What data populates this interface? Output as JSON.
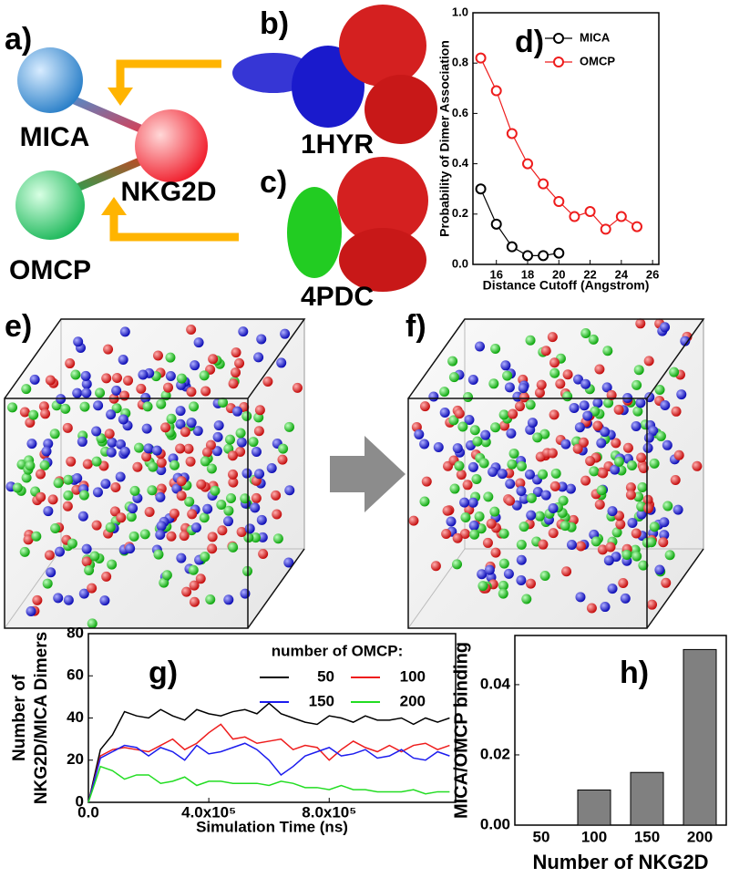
{
  "panel_labels": [
    "a)",
    "b)",
    "c)",
    "d)",
    "e)",
    "f)",
    "g)",
    "h)"
  ],
  "diagram": {
    "nodes": [
      "MICA",
      "NKG2D",
      "OMCP"
    ],
    "structures": [
      "1HYR",
      "4PDC"
    ]
  },
  "chart_data": [
    {
      "type": "line",
      "xlabel": "Distance Cutoff (Angstrom)",
      "ylabel": "Probability of Dimer Association",
      "xlim": [
        14.5,
        26.4
      ],
      "xticks": [
        16,
        18,
        20,
        22,
        24,
        26
      ],
      "ylim": [
        0,
        1.0
      ],
      "yticks": [
        {
          "value": 0,
          "label": "0.0"
        },
        0.2,
        0.4,
        0.6,
        0.8,
        {
          "value": 1.0,
          "label": "1.0"
        }
      ],
      "markers": true,
      "legend": "upper right",
      "series": [
        {
          "name": "MICA",
          "color": "#000000",
          "x": [
            15,
            16,
            17,
            18,
            19,
            20
          ],
          "values": [
            0.3,
            0.16,
            0.07,
            0.035,
            0.035,
            0.045
          ]
        },
        {
          "name": "OMCP",
          "color": "#ee1c1c",
          "x": [
            15,
            16,
            17,
            18,
            19,
            20,
            21,
            22,
            23,
            24,
            25
          ],
          "values": [
            0.82,
            0.69,
            0.52,
            0.4,
            0.32,
            0.25,
            0.19,
            0.21,
            0.14,
            0.19,
            0.15
          ]
        }
      ]
    },
    {
      "type": "line",
      "xlabel": "Simulation Time (ns)",
      "ylabel": [
        "Number of",
        "NKG2D/MICA Dimers"
      ],
      "xlim": [
        0,
        1220000
      ],
      "xticks": [
        {
          "value": 0,
          "label": "0.0"
        },
        {
          "value": 400000,
          "label": "4.0x10⁵"
        },
        {
          "value": 800000,
          "label": "8.0x10⁵"
        }
      ],
      "ylim": [
        0,
        80
      ],
      "yticks": [
        0,
        20,
        40,
        60,
        80
      ],
      "legend": "upper right",
      "legend_title": "number of OMCP:",
      "x": [
        0,
        40000,
        80000,
        120000,
        160000,
        200000,
        240000,
        280000,
        320000,
        360000,
        400000,
        440000,
        480000,
        520000,
        560000,
        600000,
        640000,
        680000,
        720000,
        760000,
        800000,
        840000,
        880000,
        920000,
        960000,
        1000000,
        1040000,
        1080000,
        1120000,
        1160000,
        1200000
      ],
      "series": [
        {
          "name": "50",
          "color": "#000000",
          "values": [
            0,
            25,
            32,
            43,
            41,
            40,
            44,
            41,
            39,
            44,
            42,
            41,
            43,
            44,
            42,
            47,
            42,
            40,
            38,
            37,
            41,
            40,
            38,
            41,
            39,
            39,
            40,
            37,
            40,
            38,
            40
          ]
        },
        {
          "name": "100",
          "color": "#ee1c1c",
          "values": [
            0,
            22,
            25,
            26,
            25,
            24,
            27,
            30,
            25,
            28,
            33,
            37,
            30,
            31,
            28,
            29,
            30,
            25,
            27,
            26,
            20,
            25,
            29,
            26,
            24,
            27,
            24,
            27,
            28,
            25,
            27
          ]
        },
        {
          "name": "150",
          "color": "#1c1cee",
          "values": [
            0,
            21,
            24,
            27,
            26,
            22,
            26,
            24,
            20,
            27,
            23,
            24,
            26,
            28,
            25,
            20,
            13,
            17,
            22,
            24,
            26,
            22,
            23,
            25,
            21,
            22,
            25,
            21,
            20,
            24,
            22
          ]
        },
        {
          "name": "200",
          "color": "#22dd22",
          "values": [
            0,
            17,
            15,
            11,
            13,
            13,
            9,
            10,
            12,
            8,
            10,
            10,
            9,
            9,
            9,
            8,
            10,
            9,
            7,
            7,
            6,
            8,
            6,
            6,
            5,
            5,
            5,
            6,
            4,
            5,
            5
          ]
        }
      ]
    },
    {
      "type": "bar",
      "xlabel": "Number of NKG2D",
      "ylabel": "MICA/OMCP binding",
      "categories": [
        "50",
        "100",
        "150",
        "200"
      ],
      "values": [
        0,
        0.01,
        0.015,
        0.05
      ],
      "color": "#808080",
      "ylim": [
        0,
        0.054
      ],
      "yticks": [
        {
          "value": 0,
          "label": "0.00"
        },
        {
          "value": 0.02,
          "label": "0.02"
        },
        {
          "value": 0.04,
          "label": "0.04"
        }
      ]
    }
  ]
}
